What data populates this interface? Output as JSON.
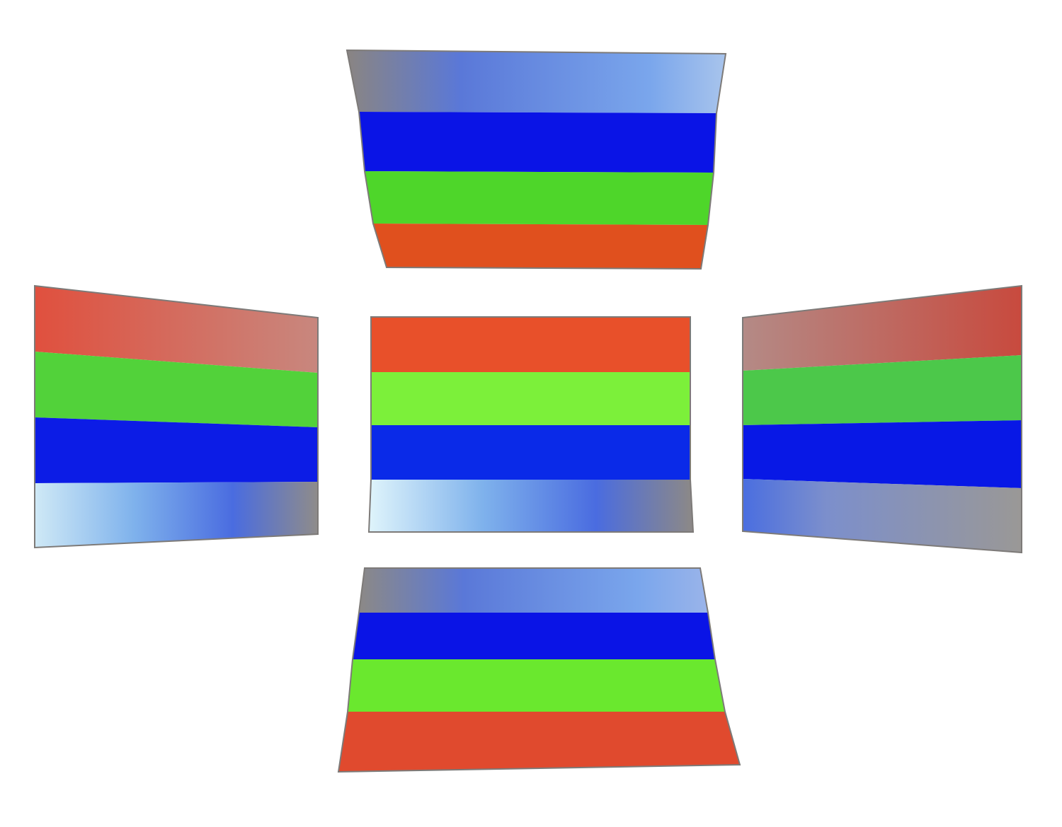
{
  "background": "#ffffff",
  "panels": [
    {
      "name": "top-panel",
      "stripes": [
        {
          "name": "gray-to-blue-gradient-stripe",
          "from": "#8a8582",
          "to": "#a8c4ec"
        },
        {
          "name": "blue-stripe",
          "color": "#0a14e6"
        },
        {
          "name": "green-stripe",
          "color": "#4ed62a"
        },
        {
          "name": "red-stripe",
          "color": "#e0501e"
        }
      ]
    },
    {
      "name": "left-panel",
      "stripes": [
        {
          "name": "red-stripe",
          "color": "#e0503e",
          "fade": "#c8877e"
        },
        {
          "name": "green-stripe",
          "color": "#52d23a"
        },
        {
          "name": "blue-stripe",
          "color": "#0c1ce6"
        },
        {
          "name": "light-blue-to-gray-gradient-stripe",
          "from": "#cfe9f6",
          "to": "#8f8c8a"
        }
      ]
    },
    {
      "name": "center-panel",
      "stripes": [
        {
          "name": "red-stripe",
          "color": "#e8502a"
        },
        {
          "name": "green-stripe",
          "color": "#7cf03a"
        },
        {
          "name": "blue-stripe",
          "color": "#0a2ae8"
        },
        {
          "name": "light-blue-to-gray-gradient-stripe",
          "from": "#dff4fb",
          "to": "#8d8986"
        }
      ]
    },
    {
      "name": "right-panel",
      "stripes": [
        {
          "name": "red-stripe",
          "color": "#c84a3e",
          "fade": "#b48a86"
        },
        {
          "name": "green-stripe",
          "color": "#4cc84a"
        },
        {
          "name": "blue-stripe",
          "color": "#0818e6"
        },
        {
          "name": "blue-to-gray-gradient-stripe",
          "from": "#4a6ee0",
          "to": "#9a9896"
        }
      ]
    },
    {
      "name": "bottom-panel",
      "stripes": [
        {
          "name": "gray-to-blue-gradient-stripe",
          "from": "#8c8986",
          "to": "#9ab4ea"
        },
        {
          "name": "blue-stripe",
          "color": "#0a14e6"
        },
        {
          "name": "green-stripe",
          "color": "#6ae82e"
        },
        {
          "name": "red-stripe",
          "color": "#e04a2e"
        }
      ]
    }
  ]
}
